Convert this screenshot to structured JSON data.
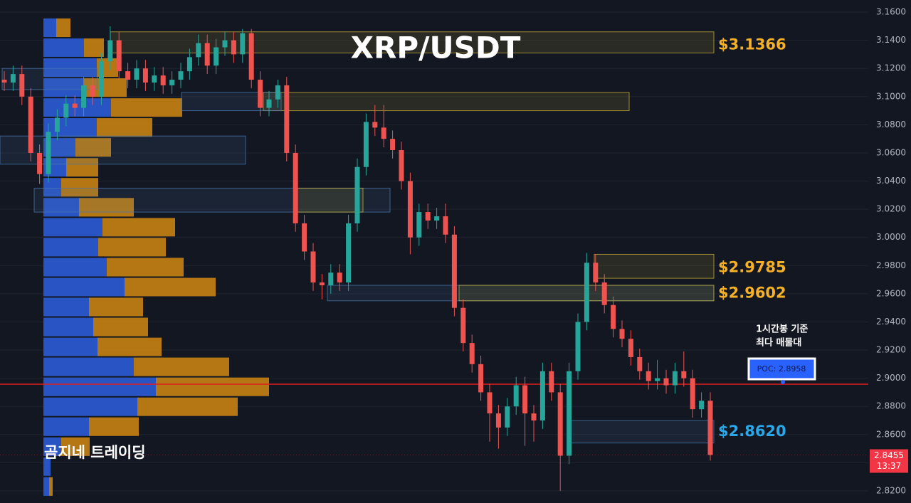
{
  "chart_data": {
    "type": "candlestick",
    "title": "XRP/USDT",
    "watermark": "곰지네 트레이딩",
    "up_color": "#26a69a",
    "down_color": "#ef5350",
    "open": [
      3.112,
      3.11,
      3.116,
      3.1,
      3.06,
      3.045,
      3.075,
      3.085,
      3.095,
      3.092,
      3.108,
      3.1,
      3.125,
      3.14,
      3.118,
      3.112,
      3.12,
      3.11,
      3.115,
      3.108,
      3.112,
      3.118,
      3.128,
      3.138,
      3.122,
      3.135,
      3.14,
      3.13,
      3.145,
      3.112,
      3.092,
      3.098,
      3.108,
      3.06,
      3.01,
      2.99,
      2.968,
      2.966,
      2.975,
      2.968,
      3.01,
      3.05,
      3.082,
      3.078,
      3.07,
      3.062,
      3.04,
      3.0,
      3.018,
      3.012,
      3.015,
      3.002,
      2.95,
      2.925,
      2.91,
      2.89,
      2.875,
      2.865,
      2.88,
      2.895,
      2.875,
      2.87,
      2.905,
      2.89,
      2.845,
      2.905,
      2.94,
      2.982,
      2.968,
      2.952,
      2.935,
      2.928,
      2.915,
      2.905,
      2.898,
      2.9,
      2.895,
      2.905,
      2.9,
      2.878,
      2.884
    ],
    "high": [
      3.118,
      3.122,
      3.122,
      3.106,
      3.066,
      3.081,
      3.091,
      3.101,
      3.101,
      3.114,
      3.114,
      3.131,
      3.15,
      3.146,
      3.124,
      3.126,
      3.126,
      3.121,
      3.121,
      3.118,
      3.124,
      3.134,
      3.144,
      3.144,
      3.141,
      3.146,
      3.146,
      3.148,
      3.148,
      3.118,
      3.104,
      3.112,
      3.114,
      3.066,
      3.016,
      2.996,
      2.974,
      2.981,
      2.981,
      3.016,
      3.056,
      3.088,
      3.094,
      3.094,
      3.076,
      3.068,
      3.046,
      3.024,
      3.024,
      3.021,
      3.024,
      3.008,
      2.956,
      2.931,
      2.916,
      2.896,
      2.881,
      2.886,
      2.901,
      2.901,
      2.881,
      2.911,
      2.911,
      2.896,
      2.911,
      2.946,
      2.989,
      2.988,
      2.974,
      2.958,
      2.941,
      2.934,
      2.921,
      2.911,
      2.913,
      2.906,
      2.911,
      2.919,
      2.906,
      2.89,
      2.89
    ],
    "low": [
      3.104,
      3.104,
      3.094,
      3.054,
      3.038,
      3.039,
      3.069,
      3.079,
      3.086,
      3.086,
      3.094,
      3.094,
      3.119,
      3.112,
      3.106,
      3.106,
      3.104,
      3.104,
      3.102,
      3.102,
      3.106,
      3.112,
      3.122,
      3.116,
      3.116,
      3.129,
      3.124,
      3.124,
      3.106,
      3.086,
      3.086,
      3.092,
      3.054,
      3.004,
      2.984,
      2.962,
      2.956,
      2.96,
      2.962,
      2.962,
      3.004,
      3.044,
      3.072,
      3.064,
      3.056,
      3.034,
      2.988,
      2.994,
      3.006,
      3.006,
      2.996,
      2.944,
      2.919,
      2.904,
      2.884,
      2.855,
      2.85,
      2.859,
      2.874,
      2.852,
      2.855,
      2.864,
      2.884,
      2.82,
      2.839,
      2.899,
      2.934,
      2.962,
      2.946,
      2.929,
      2.922,
      2.909,
      2.899,
      2.892,
      2.892,
      2.889,
      2.889,
      2.894,
      2.872,
      2.872,
      2.8415
    ],
    "close": [
      3.11,
      3.116,
      3.1,
      3.06,
      3.045,
      3.075,
      3.085,
      3.095,
      3.092,
      3.108,
      3.1,
      3.125,
      3.14,
      3.118,
      3.112,
      3.12,
      3.11,
      3.115,
      3.108,
      3.112,
      3.118,
      3.128,
      3.138,
      3.122,
      3.135,
      3.14,
      3.13,
      3.145,
      3.112,
      3.092,
      3.098,
      3.108,
      3.06,
      3.01,
      2.99,
      2.968,
      2.966,
      2.975,
      2.968,
      3.01,
      3.05,
      3.082,
      3.078,
      3.07,
      3.062,
      3.04,
      3.0,
      3.018,
      3.012,
      3.015,
      3.002,
      2.95,
      2.925,
      2.91,
      2.89,
      2.875,
      2.865,
      2.88,
      2.895,
      2.875,
      2.87,
      2.905,
      2.89,
      2.845,
      2.905,
      2.94,
      2.982,
      2.968,
      2.952,
      2.935,
      2.928,
      2.915,
      2.905,
      2.898,
      2.9,
      2.895,
      2.905,
      2.9,
      2.878,
      2.884,
      2.8455
    ],
    "ylim": [
      2.8114,
      3.1686
    ],
    "yticks": [
      {
        "value": 3.16,
        "label": "3.1600"
      },
      {
        "value": 3.14,
        "label": "3.1400"
      },
      {
        "value": 3.12,
        "label": "3.1200"
      },
      {
        "value": 3.1,
        "label": "3.1000"
      },
      {
        "value": 3.08,
        "label": "3.0800"
      },
      {
        "value": 3.06,
        "label": "3.0600"
      },
      {
        "value": 3.04,
        "label": "3.0400"
      },
      {
        "value": 3.02,
        "label": "3.0200"
      },
      {
        "value": 3.0,
        "label": "3.0000"
      },
      {
        "value": 2.98,
        "label": "2.9800"
      },
      {
        "value": 2.96,
        "label": "2.9600"
      },
      {
        "value": 2.94,
        "label": "2.9400"
      },
      {
        "value": 2.92,
        "label": "2.9200"
      },
      {
        "value": 2.9,
        "label": "2.9000"
      },
      {
        "value": 2.88,
        "label": "2.8800"
      },
      {
        "value": 2.86,
        "label": "2.8600"
      },
      {
        "value": 2.84,
        "label": "2.8400"
      },
      {
        "value": 2.82,
        "label": "2.8200"
      }
    ],
    "grid": true,
    "profile": {
      "bins": [
        3.156,
        3.1418,
        3.1277,
        3.1135,
        3.0993,
        3.0852,
        3.071,
        3.0568,
        3.0427,
        3.0285,
        3.0143,
        3.0002,
        2.986,
        2.9718,
        2.9577,
        2.9435,
        2.9293,
        2.9152,
        2.901,
        2.8868,
        2.8727,
        2.8585,
        2.8443,
        2.8302,
        2.816
      ],
      "buy": [
        18,
        57,
        75,
        57,
        95,
        75,
        45,
        32,
        25,
        50,
        83,
        77,
        89,
        114,
        64,
        70,
        76,
        127,
        158,
        132,
        64,
        25,
        10,
        8
      ],
      "sell": [
        20,
        28,
        30,
        60,
        100,
        78,
        50,
        45,
        52,
        77,
        102,
        95,
        108,
        128,
        76,
        77,
        90,
        134,
        159,
        141,
        70,
        40,
        0,
        5
      ],
      "buy_color": "#2c5bd6",
      "sell_color": "#c88213"
    },
    "zones": [
      {
        "top": 3.146,
        "bottom": 3.131,
        "color": "#c9b037"
      },
      {
        "top": 3.12,
        "bottom": 3.105,
        "color": "#4a78b0"
      },
      {
        "top": 3.103,
        "bottom": 3.09,
        "color": "#c9b037"
      },
      {
        "top": 3.103,
        "bottom": 3.09,
        "color": "#4a78b0"
      },
      {
        "top": 3.072,
        "bottom": 3.052,
        "color": "#4a78b0"
      },
      {
        "top": 3.035,
        "bottom": 3.018,
        "color": "#4a78b0"
      },
      {
        "top": 3.035,
        "bottom": 3.018,
        "color": "#c9b037"
      },
      {
        "top": 2.988,
        "bottom": 2.971,
        "color": "#c9b037"
      },
      {
        "top": 2.966,
        "bottom": 2.955,
        "color": "#4a78b0"
      },
      {
        "top": 2.966,
        "bottom": 2.955,
        "color": "#c9b037"
      },
      {
        "top": 2.87,
        "bottom": 2.854,
        "color": "#4a78b0"
      }
    ],
    "price_labels": [
      {
        "value": 3.1366,
        "label": "$3.1366",
        "color": "#f5b025"
      },
      {
        "value": 2.9785,
        "label": "$2.9785",
        "color": "#f5b025"
      },
      {
        "value": 2.9602,
        "label": "$2.9602",
        "color": "#f5b025"
      },
      {
        "value": 2.862,
        "label": "$2.8620",
        "color": "#2aa7e8"
      }
    ],
    "poc": {
      "value": 2.8958,
      "label": "POC: 2.8958",
      "color": "#e01e1e"
    },
    "annotation": [
      "1시간봉 기준",
      "최다 매물대"
    ],
    "last_price": {
      "value": 2.8455,
      "label": "2.8455",
      "time": "13:37",
      "color": "#f23645"
    }
  }
}
